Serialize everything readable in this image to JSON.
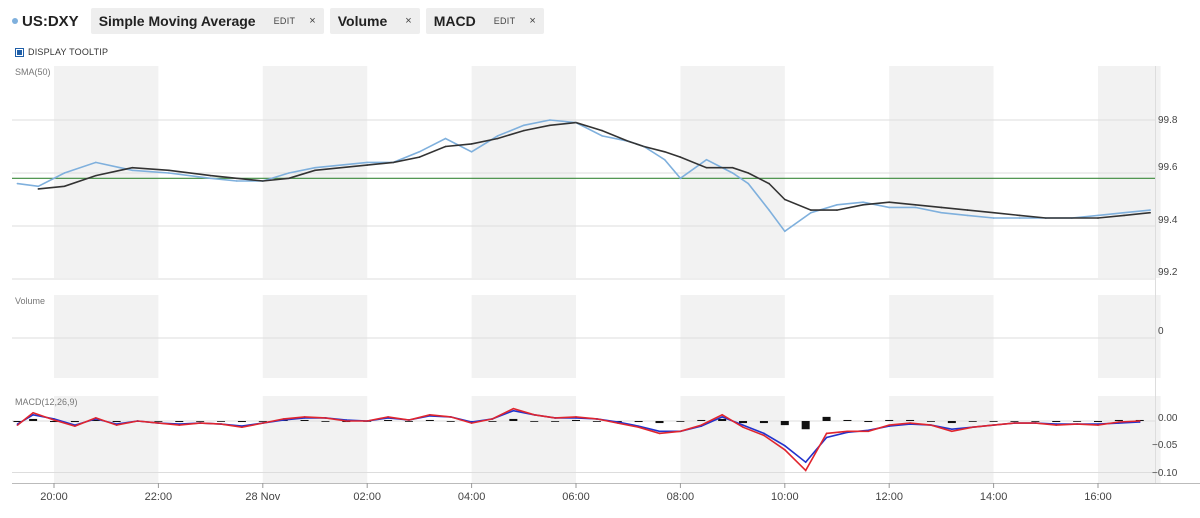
{
  "toolbar": {
    "ticker": "US:DXY",
    "chips": [
      {
        "label": "Simple Moving Average",
        "edit": "EDIT",
        "close": "×"
      },
      {
        "label": "Volume",
        "close": "×"
      },
      {
        "label": "MACD",
        "edit": "EDIT",
        "close": "×"
      }
    ]
  },
  "tooltip_toggle": "DISPLAY TOOLTIP",
  "colors": {
    "price": "#7fb0dd",
    "sma": "#333333",
    "reference": "#3b8a3b",
    "macd": "#e0252e",
    "signal": "#2233cc",
    "histogram": "#111111",
    "shade": "#f2f2f2"
  },
  "chart_data": [
    {
      "type": "line",
      "panel": "price",
      "title": "SMA(50)",
      "yticks": [
        "99.8",
        "99.6",
        "99.4",
        "99.2"
      ],
      "ylim": [
        99.2,
        99.8
      ],
      "reference_line": 99.58,
      "x_hours": [
        19.3,
        19.7,
        20.2,
        20.8,
        21.5,
        22.2,
        23.0,
        23.5,
        24.0,
        24.5,
        25.0,
        26.0,
        26.5,
        27.0,
        27.5,
        28.0,
        28.5,
        29.0,
        29.5,
        30.0,
        30.5,
        31.0,
        31.3,
        31.7,
        32.0,
        32.5,
        33.0,
        33.3,
        33.7,
        34.0,
        34.5,
        35.0,
        35.5,
        36.0,
        36.5,
        37.0,
        37.5,
        38.0,
        38.5,
        39.0,
        39.5,
        40.0,
        40.5,
        41.0
      ],
      "series": [
        {
          "name": "US:DXY",
          "values": [
            99.56,
            99.55,
            99.6,
            99.64,
            99.61,
            99.6,
            99.58,
            99.57,
            99.57,
            99.6,
            99.62,
            99.64,
            99.64,
            99.68,
            99.73,
            99.68,
            99.74,
            99.78,
            99.8,
            99.79,
            99.74,
            99.72,
            99.7,
            99.65,
            99.58,
            99.65,
            99.6,
            99.56,
            99.46,
            99.38,
            99.45,
            99.48,
            99.49,
            99.47,
            99.47,
            99.45,
            99.44,
            99.43,
            99.43,
            99.43,
            99.43,
            99.44,
            99.45,
            99.46
          ]
        },
        {
          "name": "SMA(50)",
          "values": [
            null,
            99.54,
            99.55,
            99.59,
            99.62,
            99.61,
            99.59,
            99.58,
            99.57,
            99.58,
            99.61,
            99.63,
            99.64,
            99.66,
            99.7,
            99.71,
            99.73,
            99.76,
            99.78,
            99.79,
            99.76,
            99.72,
            99.7,
            99.68,
            99.66,
            99.62,
            99.62,
            99.6,
            99.56,
            99.5,
            99.46,
            99.46,
            99.48,
            99.49,
            99.48,
            99.47,
            99.46,
            99.45,
            99.44,
            99.43,
            99.43,
            99.43,
            99.44,
            99.45
          ]
        }
      ]
    },
    {
      "type": "bar",
      "panel": "volume",
      "title": "Volume",
      "yticks": [
        "0"
      ],
      "values": []
    },
    {
      "type": "line",
      "panel": "macd",
      "title": "MACD(12,26,9)",
      "yticks": [
        "0.00",
        "−0.05",
        "−0.10"
      ],
      "ylim": [
        -0.1,
        0.0
      ],
      "x_hours": [
        19.3,
        19.6,
        20.0,
        20.4,
        20.8,
        21.2,
        21.6,
        22.0,
        22.4,
        22.8,
        23.2,
        23.6,
        24.0,
        24.4,
        24.8,
        25.2,
        25.6,
        26.0,
        26.4,
        26.8,
        27.2,
        27.6,
        28.0,
        28.4,
        28.8,
        29.2,
        29.6,
        30.0,
        30.4,
        30.8,
        31.2,
        31.6,
        32.0,
        32.4,
        32.8,
        33.2,
        33.6,
        34.0,
        34.4,
        34.8,
        35.2,
        35.6,
        36.0,
        36.4,
        36.8,
        37.2,
        37.6,
        38.0,
        38.4,
        38.8,
        39.2,
        39.6,
        40.0,
        40.4,
        40.8
      ],
      "series": [
        {
          "name": "MACD",
          "values": [
            -0.004,
            0.008,
            0.001,
            -0.005,
            0.003,
            -0.004,
            0.0,
            -0.002,
            -0.004,
            -0.002,
            -0.003,
            -0.006,
            -0.002,
            0.002,
            0.004,
            0.003,
            0.0,
            0.0,
            0.004,
            0.001,
            0.006,
            0.004,
            -0.002,
            0.002,
            0.012,
            0.006,
            0.003,
            0.004,
            0.002,
            -0.002,
            -0.006,
            -0.012,
            -0.01,
            -0.004,
            0.006,
            -0.006,
            -0.014,
            -0.028,
            -0.048,
            -0.012,
            -0.01,
            -0.01,
            -0.004,
            -0.002,
            -0.004,
            -0.01,
            -0.006,
            -0.004,
            -0.002,
            -0.002,
            -0.004,
            -0.003,
            -0.004,
            -0.001,
            0.0
          ]
        },
        {
          "name": "Signal",
          "values": [
            -0.003,
            0.006,
            0.002,
            -0.004,
            0.002,
            -0.003,
            0.0,
            -0.002,
            -0.003,
            -0.002,
            -0.003,
            -0.005,
            -0.002,
            0.001,
            0.003,
            0.003,
            0.001,
            0.0,
            0.003,
            0.001,
            0.005,
            0.004,
            -0.001,
            0.002,
            0.01,
            0.006,
            0.003,
            0.003,
            0.002,
            -0.001,
            -0.005,
            -0.01,
            -0.01,
            -0.005,
            0.004,
            -0.004,
            -0.012,
            -0.024,
            -0.04,
            -0.016,
            -0.011,
            -0.009,
            -0.005,
            -0.003,
            -0.004,
            -0.008,
            -0.006,
            -0.004,
            -0.002,
            -0.002,
            -0.003,
            -0.003,
            -0.003,
            -0.002,
            -0.001
          ]
        },
        {
          "name": "Histogram",
          "values": [
            -0.001,
            0.002,
            -0.001,
            -0.001,
            0.001,
            -0.001,
            0.0,
            0.0,
            -0.001,
            0.0,
            0.0,
            -0.001,
            0.0,
            0.001,
            0.001,
            0.0,
            -0.001,
            0.0,
            0.001,
            0.0,
            0.001,
            0.0,
            -0.001,
            0.0,
            0.002,
            0.0,
            0.0,
            0.001,
            0.0,
            -0.001,
            -0.001,
            -0.002,
            0.0,
            0.001,
            0.002,
            -0.002,
            -0.002,
            -0.004,
            -0.008,
            0.004,
            0.001,
            -0.001,
            0.001,
            0.001,
            0.0,
            -0.002,
            0.0,
            0.0,
            0.0,
            0.0,
            -0.001,
            0.0,
            -0.001,
            0.001,
            0.001
          ]
        }
      ]
    }
  ],
  "x_axis": {
    "ticks": [
      {
        "label": "20:00",
        "hour": 20
      },
      {
        "label": "22:00",
        "hour": 22
      },
      {
        "label": "28 Nov",
        "hour": 24
      },
      {
        "label": "02:00",
        "hour": 26
      },
      {
        "label": "04:00",
        "hour": 28
      },
      {
        "label": "06:00",
        "hour": 30
      },
      {
        "label": "08:00",
        "hour": 32
      },
      {
        "label": "10:00",
        "hour": 34
      },
      {
        "label": "12:00",
        "hour": 36
      },
      {
        "label": "14:00",
        "hour": 38
      },
      {
        "label": "16:00",
        "hour": 40
      }
    ]
  }
}
